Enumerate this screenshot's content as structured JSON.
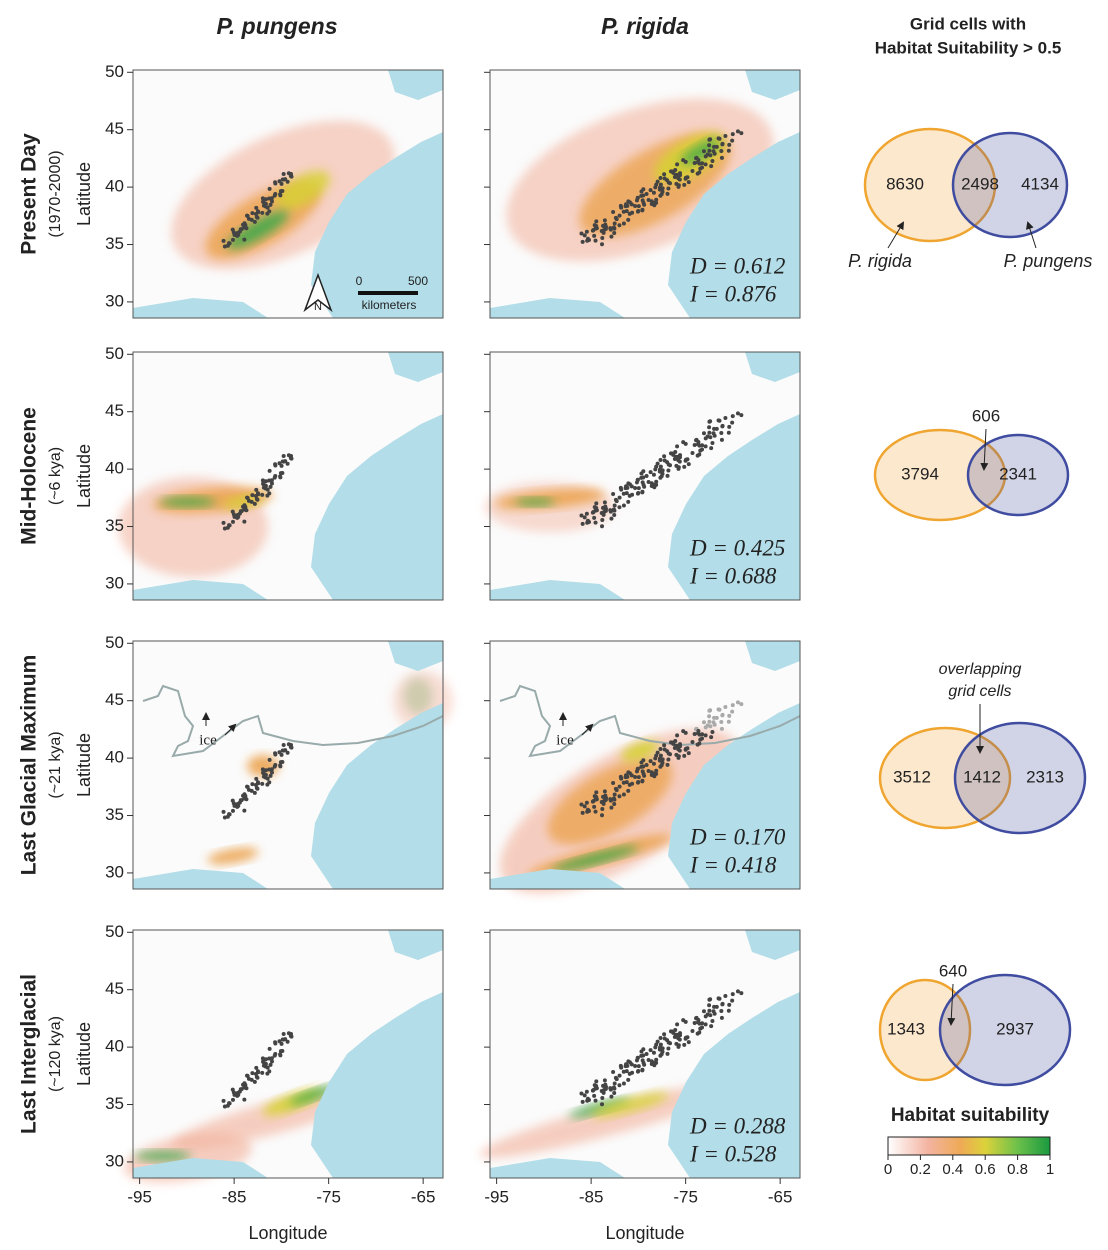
{
  "columns": [
    "P. pungens",
    "P. rigida"
  ],
  "venn_header": [
    "Grid cells with",
    "Habitat Suitability > 0.5"
  ],
  "rows": [
    {
      "period": "Present Day",
      "age": "(1970-2000)",
      "stats": [
        "D = 0.612",
        "I = 0.876"
      ],
      "venn": {
        "rigida": 8630,
        "overlap": 2498,
        "pungens": 4134
      }
    },
    {
      "period": "Mid-Holocene",
      "age": "(~6 kya)",
      "stats": [
        "D = 0.425",
        "I = 0.688"
      ],
      "venn": {
        "rigida": 3794,
        "overlap": 606,
        "pungens": 2341
      }
    },
    {
      "period": "Last Glacial Maximum",
      "age": "(~21 kya)",
      "stats": [
        "D = 0.170",
        "I = 0.418"
      ],
      "venn": {
        "rigida": 3512,
        "overlap": 1412,
        "pungens": 2313
      }
    },
    {
      "period": "Last Interglacial",
      "age": "(~120 kya)",
      "stats": [
        "D = 0.288",
        "I = 0.528"
      ],
      "venn": {
        "rigida": 1343,
        "overlap": 640,
        "pungens": 2937
      }
    }
  ],
  "axes": {
    "y_label": "Latitude",
    "x_label": "Longitude",
    "yticks": [
      30,
      35,
      40,
      45,
      50
    ],
    "xticks": [
      -95,
      -85,
      -75,
      -65
    ],
    "xlim": [
      -95.7,
      -62.9
    ],
    "ylim": [
      28.6,
      50.2
    ]
  },
  "map_notes": {
    "ice": "ice",
    "north": "N",
    "scale": [
      "0",
      "500"
    ],
    "scale_unit": "kilometers"
  },
  "venn_labels": {
    "rigida": "P. rigida",
    "pungens": "P. pungens",
    "overlap_note": [
      "overlapping",
      "grid cells"
    ]
  },
  "colorbar": {
    "title": "Habitat suitability",
    "ticks": [
      0,
      0.2,
      0.4,
      0.6,
      0.8,
      1
    ]
  }
}
